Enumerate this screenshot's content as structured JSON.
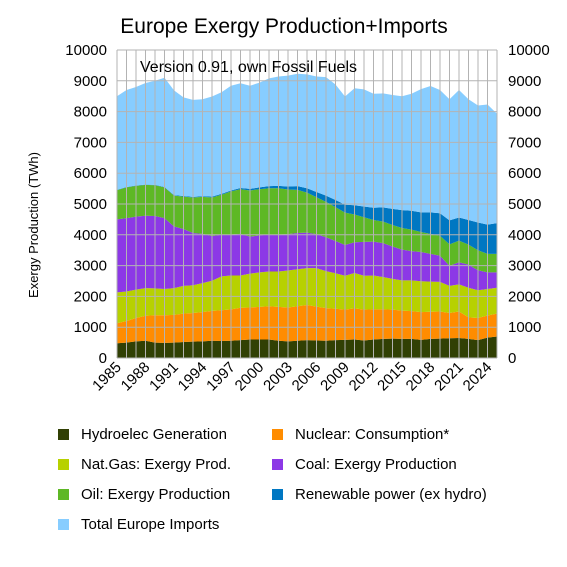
{
  "chart_data": {
    "type": "area",
    "title": "Europe Exergy Production+Imports",
    "subtitle": "Version 0.91, own Fossil Fuels",
    "ylabel": "Exergy Production (TWh)",
    "xlabel": "",
    "ylim": [
      0,
      10000
    ],
    "yticks": [
      0,
      1000,
      2000,
      3000,
      4000,
      5000,
      6000,
      7000,
      8000,
      9000,
      10000
    ],
    "xticks": [
      1985,
      1988,
      1991,
      1994,
      1997,
      2000,
      2003,
      2006,
      2009,
      2012,
      2015,
      2018,
      2021,
      2024
    ],
    "grid": true,
    "legend_position": "bottom",
    "x": [
      1985,
      1986,
      1987,
      1988,
      1989,
      1990,
      1991,
      1992,
      1993,
      1994,
      1995,
      1996,
      1997,
      1998,
      1999,
      2000,
      2001,
      2002,
      2003,
      2004,
      2005,
      2006,
      2007,
      2008,
      2009,
      2010,
      2011,
      2012,
      2013,
      2014,
      2015,
      2016,
      2017,
      2018,
      2019,
      2020,
      2021,
      2022,
      2023,
      2024,
      2025
    ],
    "series": [
      {
        "name": "Hydroelec Generation",
        "color": "#314004",
        "values": [
          480,
          500,
          540,
          560,
          500,
          490,
          500,
          520,
          530,
          540,
          560,
          550,
          560,
          580,
          600,
          600,
          600,
          560,
          540,
          560,
          580,
          570,
          560,
          580,
          590,
          600,
          570,
          600,
          620,
          630,
          620,
          620,
          590,
          620,
          630,
          640,
          650,
          620,
          580,
          660,
          700
        ]
      },
      {
        "name": "Nuclear: Consumption*",
        "color": "#ff8c00",
        "values": [
          650,
          700,
          760,
          810,
          890,
          900,
          900,
          920,
          930,
          950,
          970,
          1000,
          1020,
          1050,
          1040,
          1060,
          1080,
          1100,
          1100,
          1120,
          1140,
          1100,
          1060,
          1020,
          980,
          1010,
          1000,
          980,
          960,
          940,
          920,
          900,
          900,
          880,
          880,
          820,
          860,
          700,
          720,
          720,
          740
        ]
      },
      {
        "name": "Nat.Gas: Exergy Prod.",
        "color": "#b7d100",
        "values": [
          1000,
          960,
          920,
          900,
          870,
          850,
          870,
          900,
          900,
          940,
          980,
          1100,
          1100,
          1050,
          1100,
          1120,
          1130,
          1150,
          1200,
          1200,
          1200,
          1250,
          1200,
          1150,
          1100,
          1150,
          1100,
          1100,
          1050,
          1000,
          980,
          1000,
          1000,
          980,
          960,
          880,
          880,
          960,
          900,
          860,
          840
        ]
      },
      {
        "name": "Coal: Exergy Production",
        "color": "#8c38e6",
        "values": [
          2370,
          2380,
          2370,
          2350,
          2350,
          2300,
          2000,
          1850,
          1700,
          1600,
          1450,
          1350,
          1330,
          1350,
          1200,
          1200,
          1200,
          1200,
          1180,
          1180,
          1150,
          1100,
          1100,
          1050,
          1000,
          1000,
          1100,
          1100,
          1100,
          1050,
          1000,
          950,
          950,
          900,
          850,
          650,
          720,
          750,
          650,
          540,
          500
        ]
      },
      {
        "name": "Oil: Exergy Production",
        "color": "#5eb825",
        "values": [
          950,
          1000,
          1000,
          1000,
          1000,
          1000,
          1000,
          1050,
          1150,
          1200,
          1250,
          1300,
          1400,
          1450,
          1500,
          1500,
          1500,
          1500,
          1450,
          1400,
          1300,
          1200,
          1150,
          1100,
          1050,
          900,
          800,
          700,
          700,
          700,
          700,
          700,
          650,
          650,
          650,
          700,
          700,
          650,
          650,
          600,
          600
        ]
      },
      {
        "name": "Renewable power  (ex hydro)",
        "color": "#0077c2",
        "values": [
          10,
          10,
          10,
          10,
          10,
          10,
          20,
          20,
          20,
          20,
          30,
          30,
          30,
          40,
          50,
          60,
          70,
          80,
          100,
          120,
          140,
          170,
          200,
          230,
          260,
          300,
          350,
          400,
          460,
          520,
          580,
          610,
          640,
          700,
          730,
          780,
          750,
          800,
          900,
          950,
          1000
        ]
      },
      {
        "name": "Total Europe Imports",
        "color": "#87cdff",
        "values": [
          3040,
          3150,
          3200,
          3300,
          3380,
          3550,
          3400,
          3200,
          3150,
          3150,
          3250,
          3300,
          3400,
          3400,
          3350,
          3400,
          3500,
          3550,
          3600,
          3650,
          3700,
          3750,
          3850,
          3750,
          3510,
          3800,
          3800,
          3700,
          3700,
          3700,
          3700,
          3800,
          4000,
          4100,
          4000,
          3930,
          4140,
          3920,
          3800,
          3900,
          3550
        ]
      }
    ]
  }
}
